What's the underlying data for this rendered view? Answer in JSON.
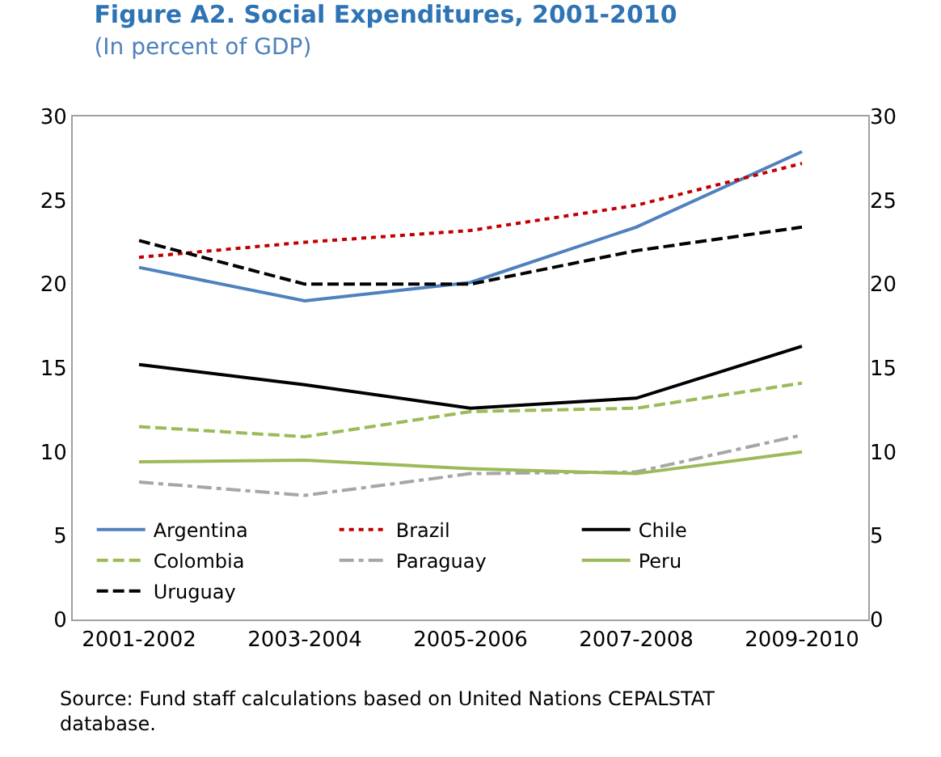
{
  "chart_data": {
    "type": "line",
    "title": "Figure A2. Social Expenditures, 2001-2010",
    "subtitle": "(In percent of GDP)",
    "categories": [
      "2001-2002",
      "2003-2004",
      "2005-2006",
      "2007-2008",
      "2009-2010"
    ],
    "series": [
      {
        "name": "Argentina",
        "color": "#4f81bd",
        "line_style": "solid",
        "values": [
          21.0,
          19.0,
          20.1,
          23.4,
          27.9
        ]
      },
      {
        "name": "Brazil",
        "color": "#c00000",
        "line_style": "dotted",
        "values": [
          21.6,
          22.5,
          23.2,
          24.7,
          27.2
        ]
      },
      {
        "name": "Chile",
        "color": "#000000",
        "line_style": "solid",
        "values": [
          15.2,
          14.0,
          12.6,
          13.2,
          16.3
        ]
      },
      {
        "name": "Colombia",
        "color": "#9bbb59",
        "line_style": "dashed",
        "values": [
          11.5,
          10.9,
          12.4,
          12.6,
          14.1
        ]
      },
      {
        "name": "Paraguay",
        "color": "#a6a6a6",
        "line_style": "dashdot",
        "values": [
          8.2,
          7.4,
          8.7,
          8.8,
          11.0
        ]
      },
      {
        "name": "Peru",
        "color": "#9bbb59",
        "line_style": "solid",
        "values": [
          9.4,
          9.5,
          9.0,
          8.7,
          10.0
        ]
      },
      {
        "name": "Uruguay",
        "color": "#000000",
        "line_style": "dashed",
        "values": [
          22.6,
          20.0,
          20.0,
          22.0,
          23.4
        ]
      }
    ],
    "ylim": [
      0,
      30
    ],
    "yticks": [
      0,
      5,
      10,
      15,
      20,
      25,
      30
    ],
    "y2lim": [
      0,
      30
    ],
    "y2ticks": [
      0,
      5,
      10,
      15,
      20,
      25,
      30
    ],
    "legend": "bottom left",
    "marker": "none",
    "annotations": [
      "Source: Fund staff calculations based on United Nations CEPALSTAT database."
    ]
  }
}
